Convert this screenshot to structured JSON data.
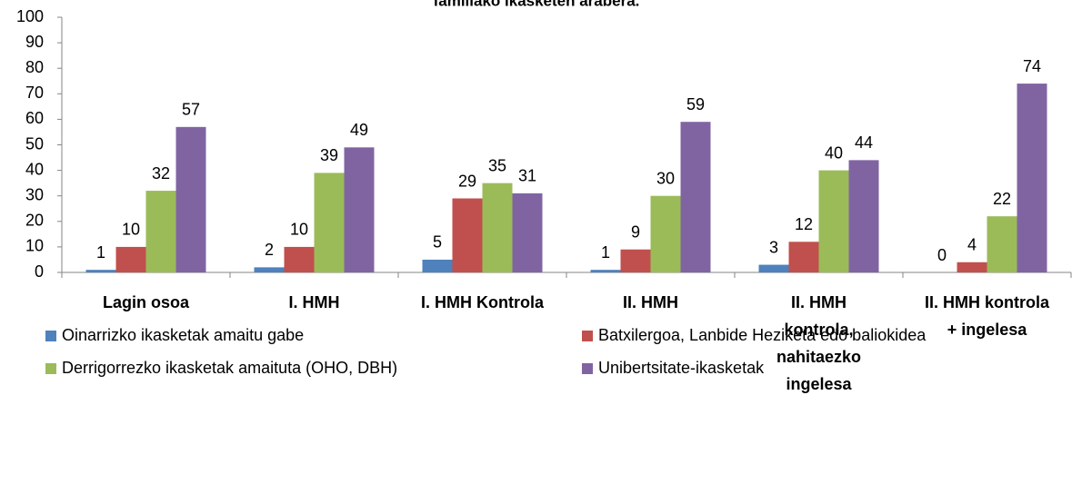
{
  "chart_data": {
    "type": "bar",
    "title": "familiako ikasketen arabera.",
    "categories": [
      "Lagin osoa",
      "I. HMH",
      "I. HMH Kontrola",
      "II. HMH",
      "II. HMH kontrola, nahitaezko ingelesa",
      "II. HMH kontrola + ingelesa"
    ],
    "series": [
      {
        "name": "Oinarrizko ikasketak amaitu gabe",
        "color": "#4f81bd",
        "values": [
          1,
          2,
          5,
          1,
          3,
          0
        ]
      },
      {
        "name": "Batxilergoa, Lanbide Heziketa edo baliokidea",
        "color": "#c0504d",
        "values": [
          10,
          10,
          29,
          9,
          12,
          4
        ]
      },
      {
        "name": "Derrigorrezko ikasketak amaituta (OHO, DBH)",
        "color": "#9bbb59",
        "values": [
          32,
          39,
          35,
          30,
          40,
          22
        ]
      },
      {
        "name": "Unibertsitate-ikasketak",
        "color": "#8064a2",
        "values": [
          57,
          49,
          31,
          59,
          44,
          74
        ]
      }
    ],
    "ylim": [
      0,
      100
    ],
    "yticks": [
      0,
      10,
      20,
      30,
      40,
      50,
      60,
      70,
      80,
      90,
      100
    ],
    "grid": false,
    "legend": "bottom"
  }
}
